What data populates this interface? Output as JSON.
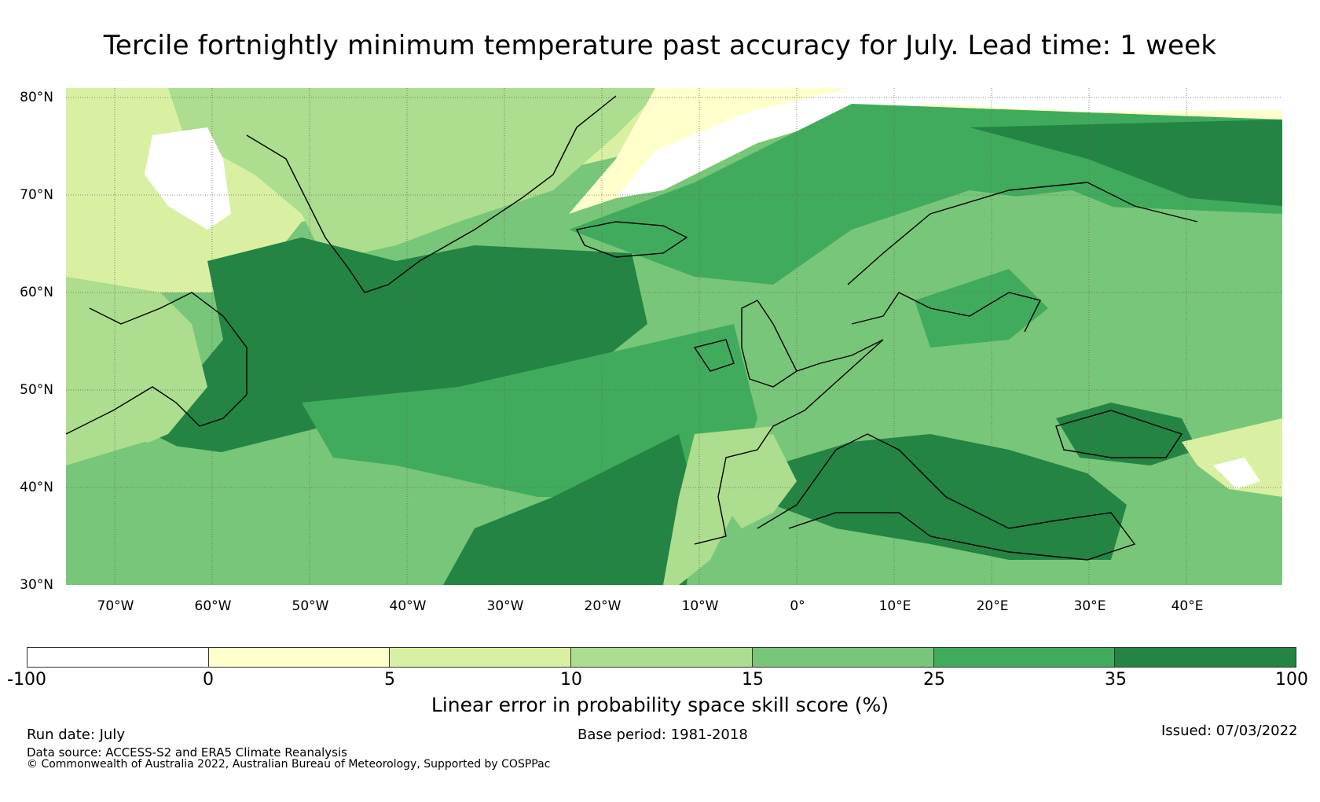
{
  "title": "Tercile fortnightly minimum temperature past accuracy for July. Lead time: 1 week",
  "map": {
    "lat_labels": [
      "80°N",
      "70°N",
      "60°N",
      "50°N",
      "40°N",
      "30°N"
    ],
    "lat_values": [
      80,
      70,
      60,
      50,
      40,
      30
    ],
    "lon_labels": [
      "70°W",
      "60°W",
      "50°W",
      "40°W",
      "30°W",
      "20°W",
      "10°W",
      "0°",
      "10°E",
      "20°E",
      "30°E",
      "40°E"
    ],
    "lon_values": [
      -70,
      -60,
      -50,
      -40,
      -30,
      -20,
      -10,
      0,
      10,
      20,
      30,
      40
    ],
    "extent": {
      "lon_min": -75,
      "lon_max": 50,
      "lat_min": 30,
      "lat_max": 81
    }
  },
  "colorbar": {
    "bounds": [
      "-100",
      "0",
      "5",
      "10",
      "15",
      "25",
      "35",
      "100"
    ],
    "colors": [
      "#ffffff",
      "#ffffcc",
      "#d9f0a3",
      "#addd8e",
      "#78c679",
      "#41ab5d",
      "#238443"
    ],
    "label": "Linear error in probability space skill score (%)"
  },
  "footer": {
    "run_date": "Run date: July",
    "base_period": "Base period: 1981-2018",
    "issued": "Issued: 07/03/2022",
    "data_source": "Data source: ACCESS-S2 and ERA5 Climate Reanalysis",
    "copyright": "© Commonwealth of Australia 2022, Australian Bureau of Meteorology, Supported by COSPPac"
  }
}
